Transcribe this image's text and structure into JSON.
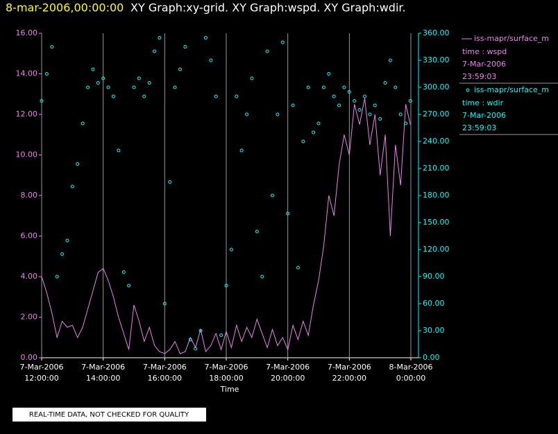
{
  "chart_data": {
    "type": "line-scatter",
    "title": "8-mar-2006,00:00:00",
    "subtitle": "XY Graph:xy-grid.  XY Graph:wspd.  XY Graph:wdir.",
    "x_label": "Time",
    "footer": "REAL-TIME DATA, NOT CHECKED FOR QUALITY",
    "x": [
      "2006-03-07T12:00:00",
      "2006-03-07T12:10:00",
      "2006-03-07T12:20:00",
      "2006-03-07T12:30:00",
      "2006-03-07T12:40:00",
      "2006-03-07T12:50:00",
      "2006-03-07T13:00:00",
      "2006-03-07T13:10:00",
      "2006-03-07T13:20:00",
      "2006-03-07T13:30:00",
      "2006-03-07T13:40:00",
      "2006-03-07T13:50:00",
      "2006-03-07T14:00:00",
      "2006-03-07T14:10:00",
      "2006-03-07T14:20:00",
      "2006-03-07T14:30:00",
      "2006-03-07T14:40:00",
      "2006-03-07T14:50:00",
      "2006-03-07T15:00:00",
      "2006-03-07T15:10:00",
      "2006-03-07T15:20:00",
      "2006-03-07T15:30:00",
      "2006-03-07T15:40:00",
      "2006-03-07T15:50:00",
      "2006-03-07T16:00:00",
      "2006-03-07T16:10:00",
      "2006-03-07T16:20:00",
      "2006-03-07T16:30:00",
      "2006-03-07T16:40:00",
      "2006-03-07T16:50:00",
      "2006-03-07T17:00:00",
      "2006-03-07T17:10:00",
      "2006-03-07T17:20:00",
      "2006-03-07T17:30:00",
      "2006-03-07T17:40:00",
      "2006-03-07T17:50:00",
      "2006-03-07T18:00:00",
      "2006-03-07T18:10:00",
      "2006-03-07T18:20:00",
      "2006-03-07T18:30:00",
      "2006-03-07T18:40:00",
      "2006-03-07T18:50:00",
      "2006-03-07T19:00:00",
      "2006-03-07T19:10:00",
      "2006-03-07T19:20:00",
      "2006-03-07T19:30:00",
      "2006-03-07T19:40:00",
      "2006-03-07T19:50:00",
      "2006-03-07T20:00:00",
      "2006-03-07T20:10:00",
      "2006-03-07T20:20:00",
      "2006-03-07T20:30:00",
      "2006-03-07T20:40:00",
      "2006-03-07T20:50:00",
      "2006-03-07T21:00:00",
      "2006-03-07T21:10:00",
      "2006-03-07T21:20:00",
      "2006-03-07T21:30:00",
      "2006-03-07T21:40:00",
      "2006-03-07T21:50:00",
      "2006-03-07T22:00:00",
      "2006-03-07T22:10:00",
      "2006-03-07T22:20:00",
      "2006-03-07T22:30:00",
      "2006-03-07T22:40:00",
      "2006-03-07T22:50:00",
      "2006-03-07T23:00:00",
      "2006-03-07T23:10:00",
      "2006-03-07T23:20:00",
      "2006-03-07T23:30:00",
      "2006-03-07T23:40:00",
      "2006-03-07T23:50:00",
      "2006-03-07T23:59:03"
    ],
    "xlim": [
      "2006-03-07T12:00:00",
      "2006-03-08T00:00:00"
    ],
    "xticks": [
      {
        "value": "2006-03-07T12:00:00",
        "label": "7-Mar-2006\n12:00:00"
      },
      {
        "value": "2006-03-07T14:00:00",
        "label": "7-Mar-2006\n14:00:00"
      },
      {
        "value": "2006-03-07T16:00:00",
        "label": "7-Mar-2006\n16:00:00"
      },
      {
        "value": "2006-03-07T18:00:00",
        "label": "7-Mar-2006\n18:00:00"
      },
      {
        "value": "2006-03-07T20:00:00",
        "label": "7-Mar-2006\n20:00:00"
      },
      {
        "value": "2006-03-07T22:00:00",
        "label": "7-Mar-2006\n22:00:00"
      },
      {
        "value": "2006-03-08T00:00:00",
        "label": "8-Mar-2006\n0:00:00"
      }
    ],
    "ylim": [
      0,
      16
    ],
    "yticks": [
      {
        "value": 0,
        "label": "0.00"
      },
      {
        "value": 2,
        "label": "2.00"
      },
      {
        "value": 4,
        "label": "4.00"
      },
      {
        "value": 6,
        "label": "6.00"
      },
      {
        "value": 8,
        "label": "8.00"
      },
      {
        "value": 10,
        "label": "10.00"
      },
      {
        "value": 12,
        "label": "12.00"
      },
      {
        "value": 14,
        "label": "14.00"
      },
      {
        "value": 16,
        "label": "16.00"
      }
    ],
    "y2lim": [
      0,
      360
    ],
    "y2ticks": [
      {
        "value": 0,
        "label": "0.00"
      },
      {
        "value": 30,
        "label": "30.00"
      },
      {
        "value": 60,
        "label": "60.00"
      },
      {
        "value": 90,
        "label": "90.00"
      },
      {
        "value": 120,
        "label": "120.00"
      },
      {
        "value": 150,
        "label": "150.00"
      },
      {
        "value": 180,
        "label": "180.00"
      },
      {
        "value": 210,
        "label": "210.00"
      },
      {
        "value": 240,
        "label": "240.00"
      },
      {
        "value": 270,
        "label": "270.00"
      },
      {
        "value": 300,
        "label": "300.00"
      },
      {
        "value": 330,
        "label": "330.00"
      },
      {
        "value": 360,
        "label": "360.00"
      }
    ],
    "grid": true,
    "series": [
      {
        "name": "iss-mapr/surface_m",
        "kind": "line",
        "axis": "y",
        "color": "#ee82ee",
        "legend_lines": [
          "time : wspd",
          "7-Mar-2006",
          "23:59:03"
        ],
        "values": [
          4.0,
          3.2,
          2.2,
          1.0,
          1.8,
          1.5,
          1.6,
          1.0,
          1.5,
          2.4,
          3.3,
          4.2,
          4.4,
          3.8,
          3.0,
          2.0,
          1.2,
          0.4,
          2.6,
          1.8,
          0.8,
          1.5,
          0.6,
          0.3,
          0.2,
          0.4,
          0.8,
          0.2,
          0.3,
          1.0,
          0.5,
          1.4,
          0.3,
          0.6,
          1.2,
          0.4,
          1.3,
          0.5,
          1.6,
          0.8,
          1.5,
          1.0,
          1.9,
          1.2,
          0.5,
          1.4,
          0.6,
          1.0,
          0.4,
          1.6,
          0.9,
          1.8,
          1.1,
          2.6,
          3.8,
          5.5,
          8.0,
          7.0,
          9.5,
          11.0,
          10.0,
          12.5,
          11.5,
          12.8,
          10.5,
          12.0,
          9.0,
          11.0,
          6.0,
          10.5,
          8.5,
          12.5,
          11.5
        ]
      },
      {
        "name": "iss-mapr/surface_m",
        "kind": "scatter",
        "axis": "y2",
        "color": "#00ffff",
        "legend_lines": [
          "time : wdir",
          "7-Mar-2006",
          "23:59:03"
        ],
        "values": [
          285,
          315,
          345,
          90,
          115,
          130,
          190,
          215,
          260,
          300,
          320,
          305,
          310,
          300,
          290,
          230,
          95,
          80,
          300,
          310,
          290,
          305,
          340,
          355,
          60,
          195,
          300,
          320,
          345,
          20,
          10,
          30,
          355,
          330,
          290,
          25,
          80,
          120,
          290,
          230,
          270,
          310,
          140,
          90,
          340,
          180,
          270,
          350,
          160,
          280,
          100,
          240,
          300,
          250,
          260,
          300,
          315,
          290,
          280,
          300,
          295,
          285,
          275,
          290,
          270,
          280,
          265,
          305,
          330,
          300,
          270,
          260,
          285
        ]
      }
    ]
  }
}
